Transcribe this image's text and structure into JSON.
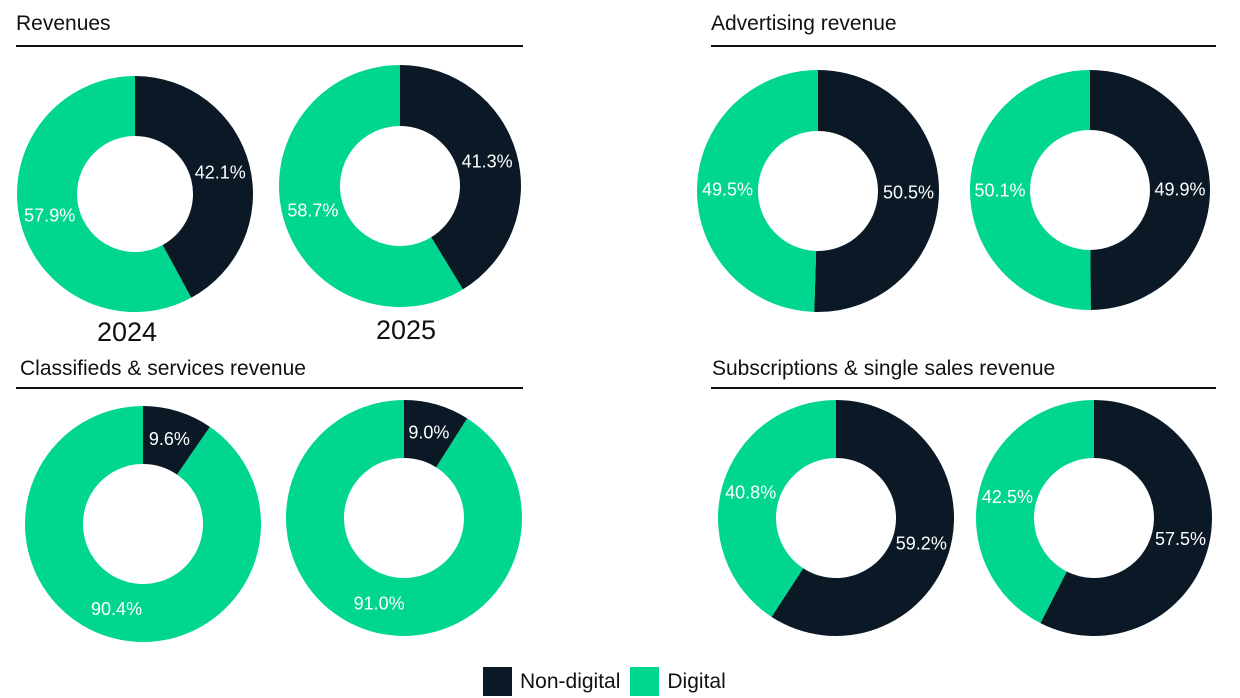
{
  "colors": {
    "non_digital": "#0b1926",
    "digital": "#00d68f",
    "label_on_dark": "#ffffff",
    "label_on_light": "#ffffff"
  },
  "year_labels": [
    "2024",
    "2025"
  ],
  "legend": [
    {
      "label": "Non-digital",
      "color": "#0b1926"
    },
    {
      "label": "Digital",
      "color": "#00d68f"
    }
  ],
  "chart_data": [
    {
      "type": "pie",
      "title": "Revenues",
      "categories": [
        "Non-digital",
        "Digital"
      ],
      "series": [
        {
          "name": "2024",
          "values": [
            42.1,
            57.9
          ],
          "labels": [
            "42.1%",
            "57.9%"
          ]
        },
        {
          "name": "2025",
          "values": [
            41.3,
            58.7
          ],
          "labels": [
            "41.3%",
            "58.7%"
          ]
        }
      ]
    },
    {
      "type": "pie",
      "title": "Advertising revenue",
      "categories": [
        "Non-digital",
        "Digital"
      ],
      "series": [
        {
          "values": [
            50.5,
            49.5
          ],
          "labels": [
            "50.5%",
            "49.5%"
          ]
        },
        {
          "values": [
            49.9,
            50.1
          ],
          "labels": [
            "49.9%",
            "50.1%"
          ]
        }
      ]
    },
    {
      "type": "pie",
      "title": "Classifieds & services revenue",
      "categories": [
        "Non-digital",
        "Digital"
      ],
      "series": [
        {
          "values": [
            9.6,
            90.4
          ],
          "labels": [
            "9.6%",
            "90.4%"
          ]
        },
        {
          "values": [
            9.0,
            91.0
          ],
          "labels": [
            "9.0%",
            "91.0%"
          ]
        }
      ]
    },
    {
      "type": "pie",
      "title": "Subscriptions & single sales revenue",
      "categories": [
        "Non-digital",
        "Digital"
      ],
      "series": [
        {
          "values": [
            59.2,
            40.8
          ],
          "labels": [
            "59.2%",
            "40.8%"
          ]
        },
        {
          "values": [
            57.5,
            42.5
          ],
          "labels": [
            "57.5%",
            "42.5%"
          ]
        }
      ]
    }
  ]
}
